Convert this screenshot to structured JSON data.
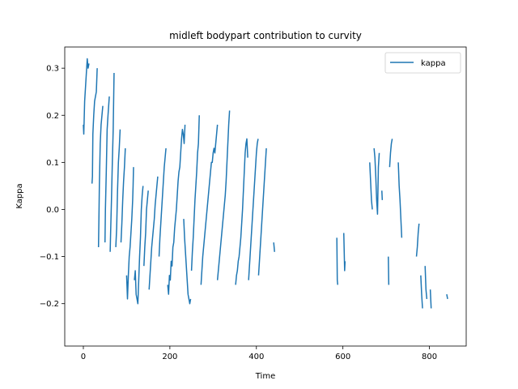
{
  "chart_data": {
    "type": "line",
    "title": "midleft bodypart contribution to curvity",
    "xlabel": "Time",
    "ylabel": "Kappa",
    "xlim": [
      -43,
      885
    ],
    "ylim": [
      -0.29,
      0.345
    ],
    "xticks": [
      0,
      200,
      400,
      600,
      800
    ],
    "yticks": [
      -0.2,
      -0.1,
      0.0,
      0.1,
      0.2,
      0.3
    ],
    "xtick_labels": [
      "0",
      "200",
      "400",
      "600",
      "800"
    ],
    "ytick_labels": [
      "−0.2",
      "−0.1",
      "0.0",
      "0.1",
      "0.2",
      "0.3"
    ],
    "grid": false,
    "legend_position": "top-right",
    "color": "#1f77b4",
    "series": [
      {
        "name": "kappa",
        "segments": [
          [
            [
              0,
              0.18
            ],
            [
              1,
              0.16
            ],
            [
              3,
              0.23
            ],
            [
              5,
              0.26
            ],
            [
              7,
              0.29
            ],
            [
              9,
              0.32
            ],
            [
              11,
              0.3
            ],
            [
              13,
              0.31
            ]
          ],
          [
            [
              20,
              0.055
            ],
            [
              21,
              0.07
            ],
            [
              22,
              0.16
            ],
            [
              24,
              0.2
            ],
            [
              26,
              0.23
            ],
            [
              28,
              0.24
            ],
            [
              30,
              0.25
            ],
            [
              32,
              0.3
            ]
          ],
          [
            [
              35,
              -0.08
            ],
            [
              36,
              -0.02
            ],
            [
              37,
              0.05
            ],
            [
              39,
              0.14
            ],
            [
              41,
              0.18
            ],
            [
              43,
              0.2
            ],
            [
              45,
              0.22
            ]
          ],
          [
            [
              50,
              -0.07
            ],
            [
              51,
              0.0
            ],
            [
              53,
              0.08
            ],
            [
              55,
              0.17
            ],
            [
              57,
              0.2
            ],
            [
              60,
              0.24
            ]
          ],
          [
            [
              62,
              -0.09
            ],
            [
              63,
              -0.05
            ],
            [
              65,
              0.02
            ],
            [
              67,
              0.1
            ],
            [
              69,
              0.17
            ],
            [
              71,
              0.29
            ]
          ],
          [
            [
              75,
              -0.08
            ],
            [
              77,
              -0.04
            ],
            [
              79,
              0.04
            ],
            [
              81,
              0.1
            ],
            [
              83,
              0.13
            ],
            [
              85,
              0.17
            ]
          ],
          [
            [
              87,
              -0.07
            ],
            [
              89,
              -0.03
            ],
            [
              91,
              0.02
            ],
            [
              93,
              0.06
            ],
            [
              95,
              0.09
            ],
            [
              97,
              0.13
            ]
          ],
          [
            [
              100,
              -0.14
            ],
            [
              102,
              -0.19
            ],
            [
              104,
              -0.14
            ],
            [
              106,
              -0.1
            ],
            [
              108,
              -0.08
            ],
            [
              110,
              -0.05
            ],
            [
              112,
              -0.02
            ],
            [
              114,
              0.02
            ],
            [
              115,
              0.05
            ],
            [
              116,
              0.09
            ]
          ],
          [
            [
              118,
              -0.15
            ],
            [
              120,
              -0.13
            ],
            [
              122,
              -0.18
            ],
            [
              124,
              -0.19
            ],
            [
              126,
              -0.2
            ],
            [
              128,
              -0.15
            ],
            [
              130,
              -0.1
            ],
            [
              132,
              -0.06
            ],
            [
              134,
              0.0
            ],
            [
              136,
              0.03
            ],
            [
              138,
              0.05
            ]
          ],
          [
            [
              140,
              -0.12
            ],
            [
              142,
              -0.08
            ],
            [
              144,
              -0.05
            ],
            [
              146,
              0.0
            ],
            [
              148,
              0.02
            ],
            [
              150,
              0.04
            ]
          ],
          [
            [
              152,
              -0.17
            ],
            [
              154,
              -0.14
            ],
            [
              156,
              -0.11
            ],
            [
              158,
              -0.08
            ],
            [
              160,
              -0.06
            ],
            [
              162,
              -0.04
            ],
            [
              164,
              -0.02
            ],
            [
              166,
              0.01
            ],
            [
              168,
              0.03
            ],
            [
              170,
              0.05
            ],
            [
              172,
              0.07
            ]
          ],
          [
            [
              175,
              -0.1
            ],
            [
              177,
              -0.06
            ],
            [
              179,
              -0.03
            ],
            [
              181,
              0.0
            ],
            [
              183,
              0.03
            ],
            [
              185,
              0.06
            ],
            [
              187,
              0.09
            ],
            [
              189,
              0.11
            ],
            [
              191,
              0.13
            ]
          ],
          [
            [
              195,
              -0.16
            ],
            [
              197,
              -0.18
            ],
            [
              199,
              -0.14
            ],
            [
              201,
              -0.15
            ],
            [
              203,
              -0.11
            ],
            [
              205,
              -0.12
            ],
            [
              207,
              -0.08
            ],
            [
              209,
              -0.07
            ],
            [
              211,
              -0.04
            ],
            [
              213,
              -0.02
            ],
            [
              215,
              0.0
            ],
            [
              217,
              0.03
            ],
            [
              219,
              0.06
            ],
            [
              221,
              0.08
            ],
            [
              223,
              0.09
            ],
            [
              225,
              0.12
            ],
            [
              227,
              0.15
            ],
            [
              229,
              0.17
            ],
            [
              231,
              0.16
            ],
            [
              233,
              0.14
            ],
            [
              235,
              0.18
            ]
          ],
          [
            [
              232,
              -0.02
            ],
            [
              234,
              -0.06
            ],
            [
              236,
              -0.09
            ],
            [
              238,
              -0.12
            ],
            [
              240,
              -0.15
            ],
            [
              242,
              -0.18
            ],
            [
              244,
              -0.19
            ],
            [
              246,
              -0.2
            ],
            [
              248,
              -0.19
            ]
          ],
          [
            [
              250,
              -0.13
            ],
            [
              252,
              -0.09
            ],
            [
              254,
              -0.06
            ],
            [
              256,
              -0.02
            ],
            [
              258,
              0.02
            ],
            [
              260,
              0.05
            ],
            [
              262,
              0.08
            ],
            [
              264,
              0.12
            ],
            [
              266,
              0.14
            ],
            [
              268,
              0.2
            ]
          ],
          [
            [
              272,
              -0.16
            ],
            [
              274,
              -0.13
            ],
            [
              276,
              -0.1
            ],
            [
              278,
              -0.08
            ],
            [
              280,
              -0.06
            ],
            [
              282,
              -0.04
            ],
            [
              284,
              -0.02
            ],
            [
              286,
              0.0
            ],
            [
              288,
              0.02
            ],
            [
              290,
              0.04
            ],
            [
              292,
              0.06
            ],
            [
              294,
              0.08
            ],
            [
              296,
              0.1
            ],
            [
              298,
              0.1
            ],
            [
              300,
              0.12
            ],
            [
              302,
              0.13
            ],
            [
              304,
              0.12
            ],
            [
              306,
              0.14
            ],
            [
              308,
              0.16
            ],
            [
              310,
              0.18
            ]
          ],
          [
            [
              310,
              -0.15
            ],
            [
              312,
              -0.13
            ],
            [
              314,
              -0.11
            ],
            [
              316,
              -0.09
            ],
            [
              318,
              -0.07
            ],
            [
              320,
              -0.05
            ],
            [
              322,
              -0.03
            ],
            [
              324,
              -0.01
            ],
            [
              326,
              0.01
            ],
            [
              328,
              0.03
            ],
            [
              330,
              0.06
            ],
            [
              332,
              0.1
            ],
            [
              334,
              0.14
            ],
            [
              336,
              0.18
            ],
            [
              338,
              0.21
            ]
          ],
          [
            [
              352,
              -0.16
            ],
            [
              354,
              -0.14
            ],
            [
              356,
              -0.13
            ],
            [
              358,
              -0.11
            ],
            [
              360,
              -0.1
            ],
            [
              362,
              -0.08
            ],
            [
              364,
              -0.06
            ],
            [
              366,
              -0.03
            ],
            [
              368,
              0.0
            ],
            [
              370,
              0.04
            ],
            [
              372,
              0.08
            ],
            [
              374,
              0.12
            ],
            [
              376,
              0.14
            ],
            [
              378,
              0.15
            ],
            [
              380,
              0.11
            ]
          ],
          [
            [
              382,
              -0.15
            ],
            [
              384,
              -0.12
            ],
            [
              386,
              -0.09
            ],
            [
              388,
              -0.06
            ],
            [
              390,
              -0.03
            ],
            [
              392,
              0.0
            ],
            [
              394,
              0.03
            ],
            [
              396,
              0.06
            ],
            [
              398,
              0.09
            ],
            [
              400,
              0.12
            ],
            [
              402,
              0.14
            ],
            [
              404,
              0.15
            ]
          ],
          [
            [
              405,
              -0.14
            ],
            [
              407,
              -0.11
            ],
            [
              409,
              -0.08
            ],
            [
              411,
              -0.05
            ],
            [
              413,
              -0.02
            ],
            [
              415,
              0.01
            ],
            [
              417,
              0.04
            ],
            [
              419,
              0.07
            ],
            [
              421,
              0.1
            ],
            [
              423,
              0.13
            ]
          ],
          [
            [
              440,
              -0.07
            ],
            [
              442,
              -0.09
            ]
          ],
          [
            [
              586,
              -0.06
            ],
            [
              587,
              -0.15
            ],
            [
              588,
              -0.16
            ]
          ],
          [
            [
              602,
              -0.05
            ],
            [
              603,
              -0.09
            ],
            [
              604,
              -0.13
            ],
            [
              605,
              -0.11
            ]
          ],
          [
            [
              662,
              0.1
            ],
            [
              664,
              0.06
            ],
            [
              666,
              0.02
            ],
            [
              668,
              0.0
            ]
          ],
          [
            [
              672,
              0.13
            ],
            [
              674,
              0.11
            ],
            [
              676,
              0.07
            ],
            [
              678,
              0.02
            ],
            [
              680,
              -0.01
            ],
            [
              682,
              0.09
            ],
            [
              684,
              0.12
            ]
          ],
          [
            [
              690,
              0.04
            ],
            [
              691,
              0.02
            ]
          ],
          [
            [
              705,
              -0.1
            ],
            [
              706,
              -0.16
            ]
          ],
          [
            [
              708,
              0.09
            ],
            [
              710,
              0.12
            ],
            [
              712,
              0.14
            ],
            [
              714,
              0.15
            ]
          ],
          [
            [
              728,
              0.1
            ],
            [
              730,
              0.05
            ],
            [
              732,
              0.02
            ],
            [
              734,
              -0.02
            ],
            [
              736,
              -0.06
            ]
          ],
          [
            [
              770,
              -0.1
            ],
            [
              772,
              -0.08
            ],
            [
              774,
              -0.05
            ],
            [
              776,
              -0.03
            ]
          ],
          [
            [
              780,
              -0.14
            ],
            [
              782,
              -0.18
            ],
            [
              784,
              -0.21
            ]
          ],
          [
            [
              790,
              -0.12
            ],
            [
              792,
              -0.17
            ],
            [
              794,
              -0.19
            ]
          ],
          [
            [
              802,
              -0.17
            ],
            [
              804,
              -0.21
            ]
          ],
          [
            [
              840,
              -0.18
            ],
            [
              842,
              -0.19
            ]
          ]
        ]
      }
    ]
  }
}
